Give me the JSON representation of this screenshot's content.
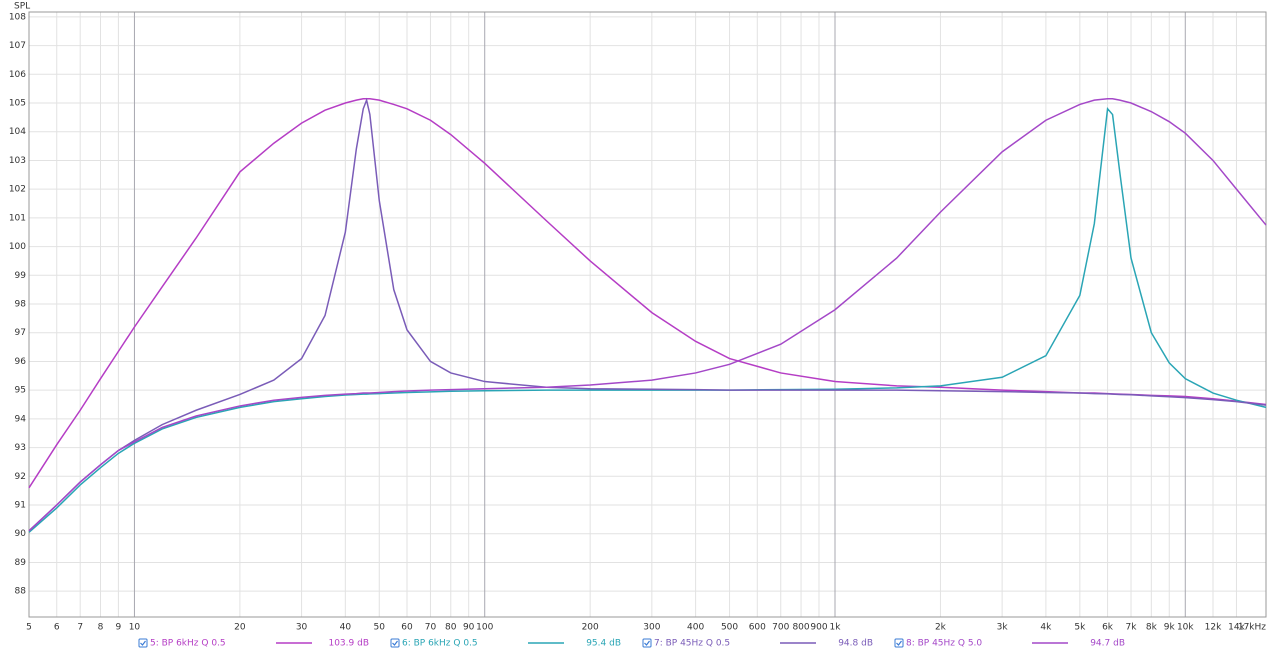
{
  "chart_data": {
    "type": "line",
    "y_label": "SPL",
    "log_x": true,
    "grid": true,
    "x": [
      5,
      6,
      7,
      8,
      9,
      10,
      12,
      15,
      20,
      25,
      30,
      35,
      40,
      43,
      45,
      46,
      47,
      50,
      55,
      60,
      70,
      80,
      100,
      150,
      200,
      300,
      400,
      500,
      700,
      1000,
      1500,
      2000,
      3000,
      4000,
      5000,
      5500,
      6000,
      6200,
      6500,
      7000,
      8000,
      9000,
      10000,
      12000,
      14000,
      17000
    ],
    "series": [
      {
        "name": "5: BP 6kHz Q 0.5",
        "readout": "103.9 dB",
        "color": "#b53dc5",
        "values": [
          91.6,
          93.1,
          94.3,
          95.4,
          96.35,
          97.2,
          98.6,
          100.3,
          102.6,
          103.6,
          104.3,
          104.75,
          105.0,
          105.1,
          105.15,
          105.15,
          105.15,
          105.1,
          104.95,
          104.8,
          104.4,
          103.9,
          102.9,
          100.9,
          99.5,
          97.7,
          96.7,
          96.1,
          95.6,
          95.3,
          95.15,
          95.1,
          95.0,
          94.95,
          94.9,
          94.9,
          94.88,
          94.87,
          94.86,
          94.85,
          94.82,
          94.8,
          94.78,
          94.7,
          94.62,
          94.5
        ]
      },
      {
        "name": "6: BP 6kHz Q 0.5",
        "readout": "95.4 dB",
        "color": "#2aa5b5",
        "values": [
          90.05,
          90.9,
          91.7,
          92.3,
          92.8,
          93.15,
          93.65,
          94.05,
          94.4,
          94.6,
          94.7,
          94.78,
          94.83,
          94.85,
          94.86,
          94.86,
          94.87,
          94.88,
          94.9,
          94.92,
          94.94,
          94.96,
          94.98,
          95.0,
          95.0,
          95.0,
          95.0,
          95.0,
          95.02,
          95.03,
          95.08,
          95.15,
          95.45,
          96.2,
          98.3,
          100.8,
          104.8,
          104.6,
          102.6,
          99.6,
          97.0,
          95.95,
          95.4,
          94.9,
          94.65,
          94.4
        ]
      },
      {
        "name": "7: BP 45Hz Q 0.5",
        "readout": "94.8 dB",
        "color": "#7a5cb8",
        "values": [
          90.1,
          91.0,
          91.8,
          92.4,
          92.9,
          93.25,
          93.8,
          94.3,
          94.85,
          95.35,
          96.1,
          97.6,
          100.5,
          103.4,
          104.8,
          105.1,
          104.6,
          101.6,
          98.5,
          97.1,
          96.0,
          95.6,
          95.3,
          95.1,
          95.05,
          95.03,
          95.02,
          95.0,
          95.0,
          95.0,
          95.0,
          94.98,
          94.95,
          94.92,
          94.9,
          94.88,
          94.87,
          94.86,
          94.85,
          94.84,
          94.8,
          94.77,
          94.74,
          94.67,
          94.6,
          94.48
        ]
      },
      {
        "name": "8: BP 45Hz Q 5.0",
        "readout": "94.7 dB",
        "color": "#a448c8",
        "values": [
          90.1,
          91.0,
          91.8,
          92.4,
          92.9,
          93.2,
          93.7,
          94.1,
          94.45,
          94.65,
          94.75,
          94.82,
          94.86,
          94.88,
          94.9,
          94.9,
          94.9,
          94.92,
          94.95,
          94.97,
          95.0,
          95.02,
          95.05,
          95.1,
          95.18,
          95.35,
          95.6,
          95.9,
          96.6,
          97.8,
          99.6,
          101.2,
          103.3,
          104.4,
          104.95,
          105.1,
          105.15,
          105.15,
          105.1,
          105.0,
          104.7,
          104.35,
          103.95,
          103.0,
          102.0,
          100.75
        ]
      }
    ],
    "xlim": [
      5,
      17000
    ],
    "ylim": [
      87.1,
      108.17
    ],
    "xticks": [
      5,
      6,
      7,
      8,
      9,
      10,
      20,
      30,
      40,
      50,
      60,
      70,
      80,
      90,
      100,
      200,
      300,
      400,
      500,
      600,
      700,
      800,
      900,
      {
        "value": 1000,
        "label": "1k"
      },
      {
        "value": 2000,
        "label": "2k"
      },
      {
        "value": 3000,
        "label": "3k"
      },
      {
        "value": 4000,
        "label": "4k"
      },
      {
        "value": 5000,
        "label": "5k"
      },
      {
        "value": 6000,
        "label": "6k"
      },
      {
        "value": 7000,
        "label": "7k"
      },
      {
        "value": 8000,
        "label": "8k"
      },
      {
        "value": 9000,
        "label": "9k"
      },
      {
        "value": 10000,
        "label": "10k"
      },
      {
        "value": 12000,
        "label": "12k"
      },
      {
        "value": 14000,
        "label": "14k"
      },
      {
        "value": 17000,
        "label": "17kHz"
      }
    ],
    "yticks": [
      88,
      89,
      90,
      91,
      92,
      93,
      94,
      95,
      96,
      97,
      98,
      99,
      100,
      101,
      102,
      103,
      104,
      105,
      106,
      107,
      108
    ]
  }
}
